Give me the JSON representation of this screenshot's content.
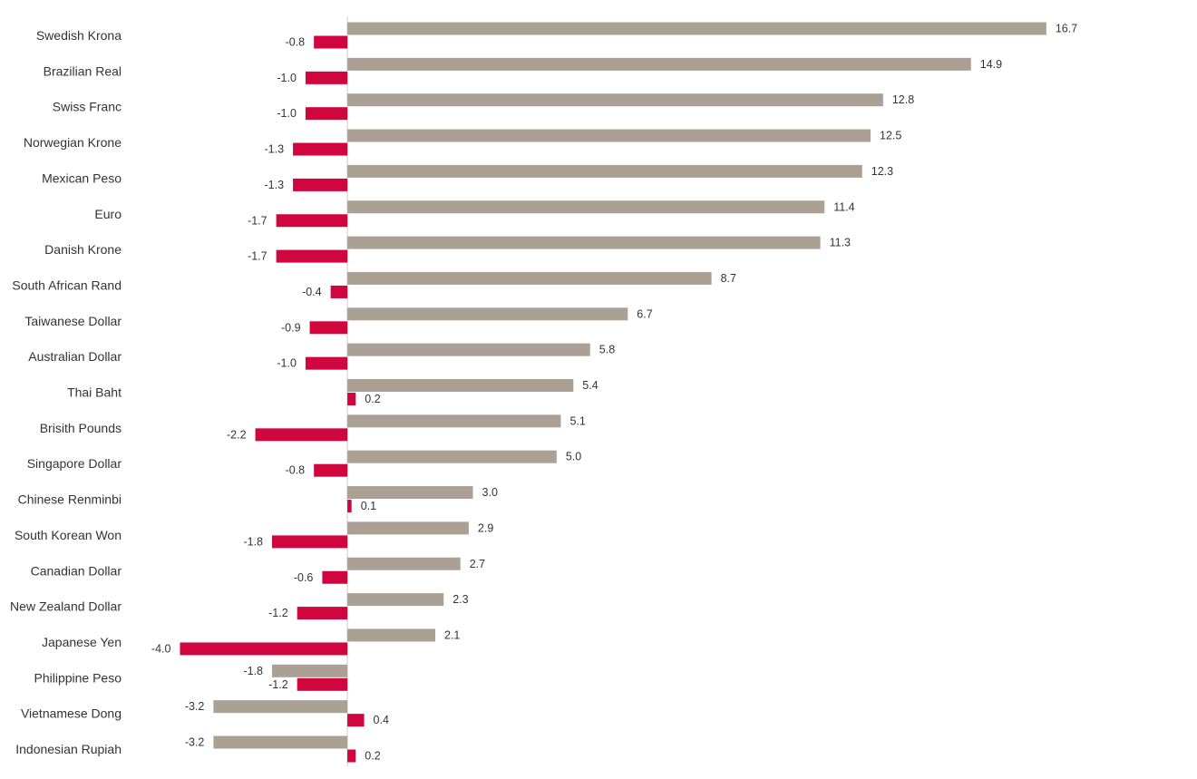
{
  "chart_data": {
    "type": "bar",
    "orientation": "horizontal",
    "categories": [
      "Swedish Krona",
      "Brazilian Real",
      "Swiss Franc",
      "Norwegian Krone",
      "Mexican Peso",
      "Euro",
      "Danish Krone",
      "South African Rand",
      "Taiwanese Dollar",
      "Australian Dollar",
      "Thai Baht",
      "Brisith Pounds",
      "Singapore Dollar",
      "Chinese Renminbi",
      "South Korean Won",
      "Canadian Dollar",
      "New Zealand Dollar",
      "Japanese Yen",
      "Philippine Peso",
      "Vietnamese Dong",
      "Indonesian Rupiah"
    ],
    "series": [
      {
        "color": "#aba094",
        "values": [
          16.7,
          14.9,
          12.8,
          12.5,
          12.3,
          11.4,
          11.3,
          8.7,
          6.7,
          5.8,
          5.4,
          5.1,
          5.0,
          3.0,
          2.9,
          2.7,
          2.3,
          2.1,
          -1.8,
          -3.2,
          -3.2
        ],
        "labels": [
          "16.7",
          "14.9",
          "12.8",
          "12.5",
          "12.3",
          "11.4",
          "11.3",
          "8.7",
          "6.7",
          "5.8",
          "5.4",
          "5.1",
          "5.0",
          "3.0",
          "2.9",
          "2.7",
          "2.3",
          "2.1",
          "-1.8",
          "-3.2",
          "-3.2"
        ]
      },
      {
        "color": "#d0063f",
        "values": [
          -0.8,
          -1.0,
          -1.0,
          -1.3,
          -1.3,
          -1.7,
          -1.7,
          -0.4,
          -0.9,
          -1.0,
          0.2,
          -2.2,
          -0.8,
          0.1,
          -1.8,
          -0.6,
          -1.2,
          -4.0,
          -1.2,
          0.4,
          0.2
        ],
        "labels": [
          "-0.8",
          "-1.0",
          "-1.0",
          "-1.3",
          "-1.3",
          "-1.7",
          "-1.7",
          "-0.4",
          "-0.9",
          "-1.0",
          "0.2",
          "-2.2",
          "-0.8",
          "0.1",
          "-1.8",
          "-0.6",
          "-1.2",
          "-4.0",
          "-1.2",
          "0.4",
          "0.2"
        ]
      }
    ],
    "title": "",
    "xlabel": "",
    "ylabel": "",
    "xlim": [
      -8.3,
      20.3
    ],
    "grid": false,
    "legend": "none",
    "zero_line_color": "#cccccc"
  }
}
